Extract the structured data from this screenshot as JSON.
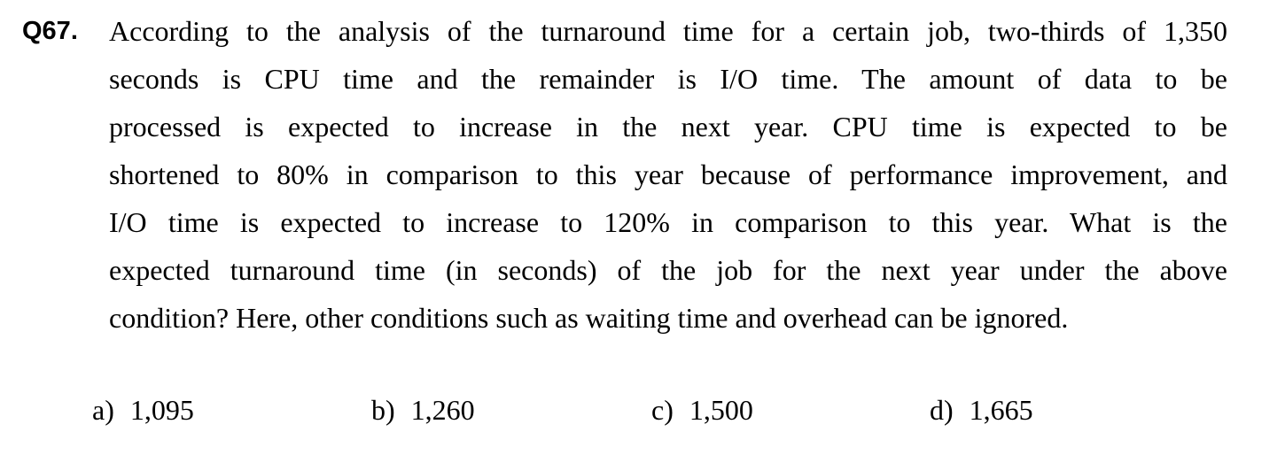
{
  "question": {
    "number": "Q67.",
    "lines": [
      "According to the analysis of the turnaround time for a certain job, two-thirds of 1,350",
      "seconds is CPU time and the remainder is I/O time.  The amount of data to be",
      "processed is expected to increase in the next year.  CPU time is expected to be",
      "shortened to 80% in comparison to this year because of performance improvement, and",
      "I/O time is expected to increase to 120% in comparison to this year.  What is the",
      "expected turnaround time (in seconds) of the job for the next year under the above",
      "condition?  Here, other conditions such as waiting time and overhead can be ignored."
    ]
  },
  "choices": [
    {
      "letter": "a)",
      "value": "1,095"
    },
    {
      "letter": "b)",
      "value": "1,260"
    },
    {
      "letter": "c)",
      "value": "1,500"
    },
    {
      "letter": "d)",
      "value": "1,665"
    }
  ]
}
